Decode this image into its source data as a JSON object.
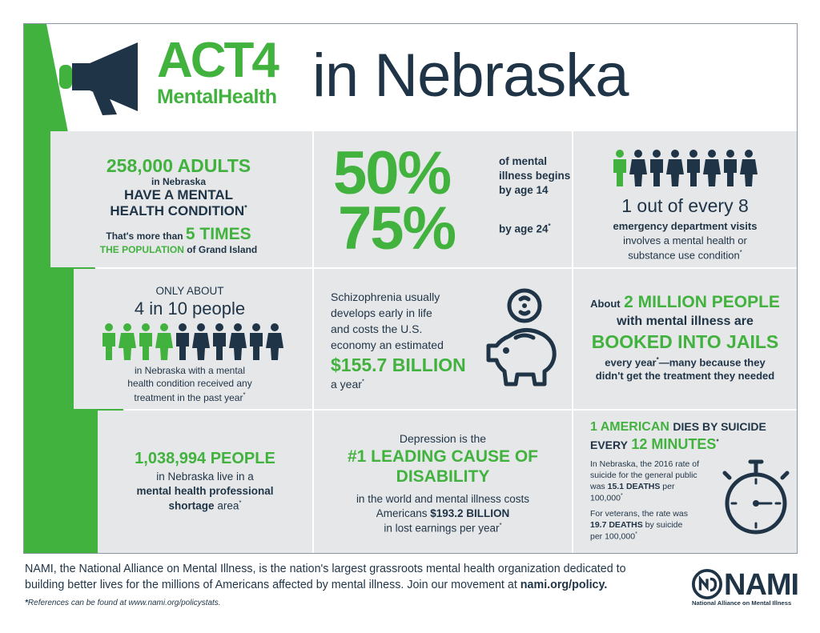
{
  "header": {
    "logo_act": "ACT4",
    "logo_sub": "MentalHealth",
    "title": "in Nebraska"
  },
  "cell1": {
    "big": "258,000 ADULTS",
    "small": "in Nebraska",
    "mid1": "HAVE A MENTAL",
    "mid2": "HEALTH CONDITION",
    "mid2_sup": "*",
    "line3_a": "That's more than",
    "line3_b": "5 TIMES",
    "line4_a": "THE POPULATION",
    "line4_b": "of Grand Island"
  },
  "cell2": {
    "pct1": "50%",
    "pct1_text1": "of mental",
    "pct1_text2": "illness begins",
    "pct1_text3": "by age 14",
    "pct2": "75%",
    "pct2_text": "by age 24",
    "pct2_sup": "*"
  },
  "cell3": {
    "big": "1 out of every 8",
    "line1": "emergency department visits",
    "line2": "involves a mental health or",
    "line3": "substance use condition",
    "sup": "*"
  },
  "cell4": {
    "top": "ONLY ABOUT",
    "big": "4 in 10 people",
    "line1": "in Nebraska with a mental",
    "line2": "health condition received any",
    "line3": "treatment in the past year",
    "sup": "*"
  },
  "cell5": {
    "line1": "Schizophrenia usually",
    "line2": "develops early in life",
    "line3": "and costs the U.S.",
    "line4": "economy an estimated",
    "big": "$155.7 BILLION",
    "tail": "a year",
    "sup": "*"
  },
  "cell6": {
    "about": "About",
    "big1": "2 MILLION PEOPLE",
    "mid": "with mental illness are",
    "big2": "BOOKED INTO JAILS",
    "line1": "every year",
    "line1_sup": "*",
    "line1_b": "—many because they",
    "line2": "didn't get the treatment they needed"
  },
  "cell7": {
    "big": "1,038,994 PEOPLE",
    "line1": "in Nebraska live in a",
    "line2": "mental health professional",
    "line3": "shortage",
    "line3_b": "area",
    "sup": "*"
  },
  "cell8": {
    "top": "Depression is the",
    "big1": "#1 LEADING CAUSE OF",
    "big2": "DISABILITY",
    "line1": "in the world and mental illness costs",
    "line2_a": "Americans",
    "line2_b": "$193.2 BILLION",
    "line3": "in lost earnings per year",
    "sup": "*"
  },
  "cell9": {
    "h1_a": "1 AMERICAN",
    "h1_b": "DIES BY SUICIDE",
    "h2_a": "EVERY",
    "h2_b": "12 MINUTES",
    "h2_sup": "*",
    "p1_1": "In Nebraska, the 2016 rate of",
    "p1_2": "suicide for the general public",
    "p1_3a": "was",
    "p1_3b": "15.1 DEATHS",
    "p1_3c": "per",
    "p1_4": "100,000",
    "p1_sup": "*",
    "p2_1": "For veterans, the rate was",
    "p2_2a": "19.7 DEATHS",
    "p2_2b": "by suicide",
    "p2_3": "per 100,000",
    "p2_sup": "*"
  },
  "footer": {
    "text_a": "NAMI, the National Alliance on Mental Illness, is the nation's largest grassroots mental health organization dedicated to building better lives for the millions of Americans affected by mental illness. Join our movement at",
    "link": "nami.org/policy.",
    "ref_star": "*",
    "ref": "References can be found at www.nami.org/policystats.",
    "nami_word": "NAMI",
    "nami_sub": "National Alliance on Mental Illness"
  },
  "colors": {
    "green": "#42b23f",
    "navy": "#1f3447",
    "panel": "#e6e7e8"
  },
  "icons": [
    "megaphone-icon",
    "person-icon",
    "piggy-bank-icon",
    "stopwatch-icon",
    "nami-logo-icon"
  ]
}
